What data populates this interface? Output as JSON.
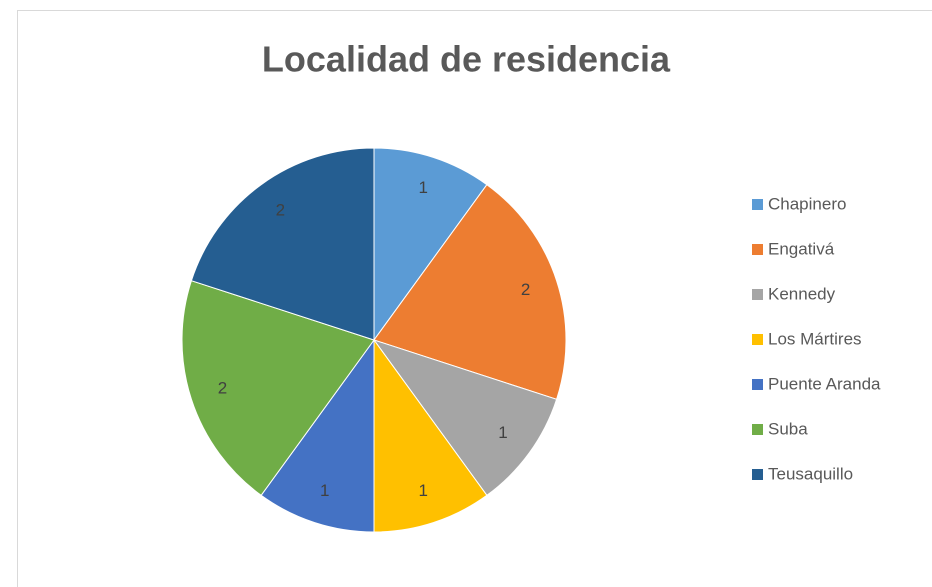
{
  "chart_data": {
    "type": "pie",
    "title": "Localidad de residencia",
    "categories": [
      "Chapinero",
      "Engativá",
      "Kennedy",
      "Los Mártires",
      "Puente Aranda",
      "Suba",
      "Teusaquillo"
    ],
    "values": [
      1,
      2,
      1,
      1,
      1,
      2,
      2
    ],
    "colors": [
      "#5b9bd5",
      "#ed7d31",
      "#a5a5a5",
      "#ffc000",
      "#4472c4",
      "#70ad47",
      "#255e91"
    ],
    "legend": "right"
  }
}
